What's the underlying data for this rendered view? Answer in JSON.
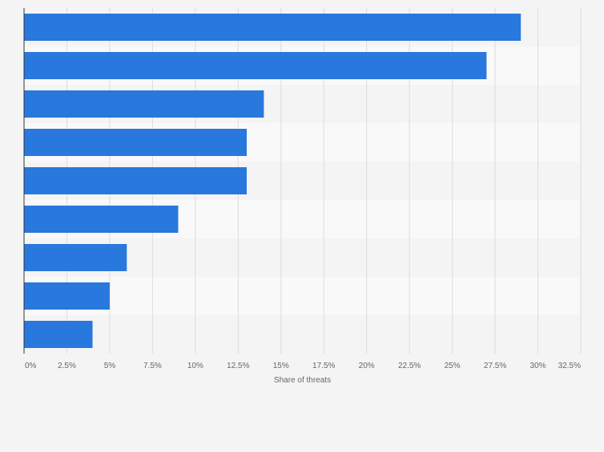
{
  "chart_data": {
    "type": "bar",
    "orientation": "horizontal",
    "categories": [
      "",
      "",
      "",
      "",
      "",
      "",
      "",
      "",
      ""
    ],
    "values": [
      29,
      27,
      14,
      13,
      13,
      9,
      6,
      5,
      4
    ],
    "unit": "%",
    "xlabel": "Share of threats",
    "ylabel": "",
    "xlim": [
      0,
      32.5
    ],
    "x_ticks": [
      0,
      2.5,
      5,
      7.5,
      10,
      12.5,
      15,
      17.5,
      20,
      22.5,
      25,
      27.5,
      30,
      32.5
    ],
    "x_tick_labels": [
      "0%",
      "2.5%",
      "5%",
      "7.5%",
      "10%",
      "12.5%",
      "15%",
      "17.5%",
      "20%",
      "22.5%",
      "25%",
      "27.5%",
      "30%",
      "32.5%"
    ],
    "grid": true,
    "legend": "none",
    "colors": {
      "bar": "#2878dd",
      "page_background": "#f4f4f4",
      "band_dark": "#f4f4f4",
      "band_light": "#f9f9f9",
      "grid": "#dcdcdc",
      "axis": "#333333",
      "text": "#666666"
    }
  }
}
